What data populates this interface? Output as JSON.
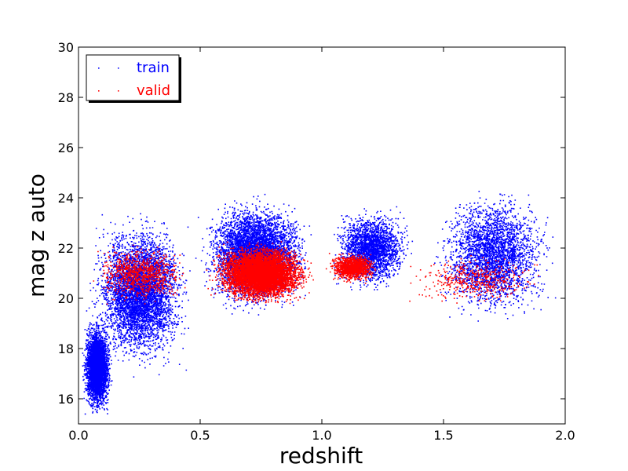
{
  "chart_data": {
    "type": "scatter",
    "title": "",
    "xlabel": "redshift",
    "ylabel": "mag z auto",
    "xlim": [
      0.0,
      2.0
    ],
    "ylim": [
      15,
      30
    ],
    "x_ticks": [
      "0.0",
      "0.5",
      "1.0",
      "1.5",
      "2.0"
    ],
    "y_ticks": [
      "16",
      "18",
      "20",
      "22",
      "24",
      "26",
      "28",
      "30"
    ],
    "grid": false,
    "legend_position": "upper-left",
    "series": [
      {
        "name": "train",
        "color": "#0000ff",
        "marker": "point",
        "distribution": [
          {
            "x_range": [
              0.0,
              0.15
            ],
            "y_range": [
              15.0,
              19.5
            ],
            "weight": 0.2
          },
          {
            "x_range": [
              0.0,
              0.5
            ],
            "y_range": [
              16.5,
              24.0
            ],
            "weight": 0.25
          },
          {
            "x_range": [
              0.45,
              1.0
            ],
            "y_range": [
              19.0,
              24.5
            ],
            "weight": 0.28
          },
          {
            "x_range": [
              1.0,
              1.4
            ],
            "y_range": [
              20.0,
              24.0
            ],
            "weight": 0.12
          },
          {
            "x_range": [
              1.4,
              2.0
            ],
            "y_range": [
              18.5,
              25.0
            ],
            "weight": 0.15
          }
        ]
      },
      {
        "name": "valid",
        "color": "#ff0000",
        "marker": "point",
        "distribution": [
          {
            "x_range": [
              0.5,
              1.0
            ],
            "y_range": [
              19.5,
              22.5
            ],
            "weight": 0.7
          },
          {
            "x_range": [
              0.0,
              0.5
            ],
            "y_range": [
              19.5,
              22.5
            ],
            "weight": 0.1
          },
          {
            "x_range": [
              1.0,
              1.25
            ],
            "y_range": [
              20.5,
              22.0
            ],
            "weight": 0.15
          },
          {
            "x_range": [
              1.25,
              2.0
            ],
            "y_range": [
              19.5,
              22.0
            ],
            "weight": 0.05
          }
        ]
      }
    ]
  }
}
